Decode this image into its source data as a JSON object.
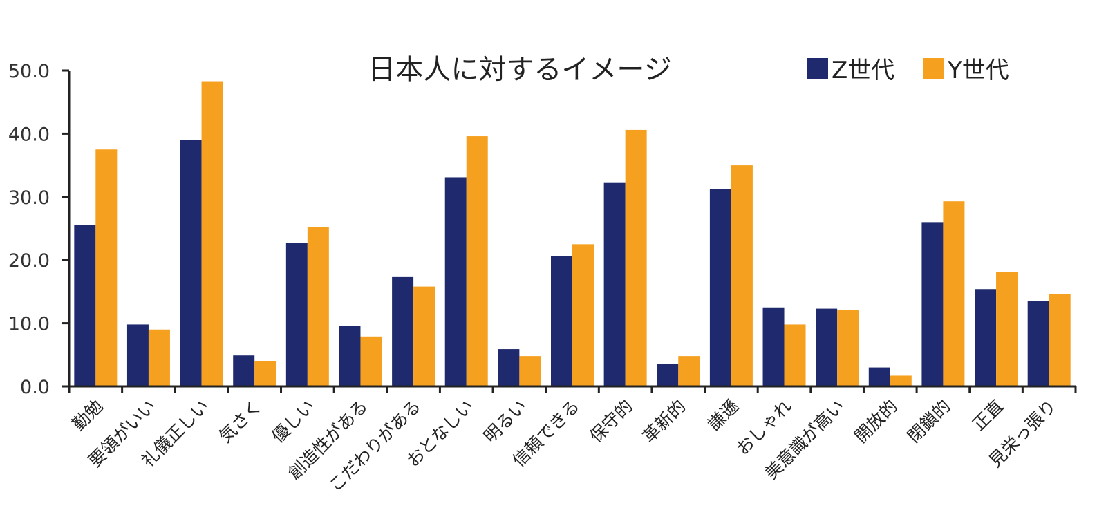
{
  "chart_data": {
    "type": "bar",
    "title": "日本人に対するイメージ",
    "xlabel": "",
    "ylabel": "",
    "ylim": [
      0,
      50
    ],
    "yticks": [
      "0.0",
      "10.0",
      "20.0",
      "30.0",
      "40.0",
      "50.0"
    ],
    "categories": [
      "勤勉",
      "要領がいい",
      "礼儀正しい",
      "気さく",
      "優しい",
      "創造性がある",
      "こだわりがある",
      "おとなしい",
      "明るい",
      "信頼できる",
      "保守的",
      "革新的",
      "謙遜",
      "おしゃれ",
      "美意識が高い",
      "開放的",
      "閉鎖的",
      "正直",
      "見栄っ張り"
    ],
    "series": [
      {
        "name": "Z世代",
        "color": "#1f2a6e",
        "values": [
          25.6,
          9.8,
          39.0,
          4.9,
          22.7,
          9.6,
          17.3,
          33.1,
          5.9,
          20.6,
          32.2,
          3.6,
          31.2,
          12.5,
          12.3,
          3.0,
          26.0,
          15.4,
          13.5
        ]
      },
      {
        "name": "Y世代",
        "color": "#f5a01f",
        "values": [
          37.5,
          9.0,
          48.3,
          4.0,
          25.2,
          7.9,
          15.8,
          39.6,
          4.8,
          22.5,
          40.6,
          4.8,
          35.0,
          9.8,
          12.1,
          1.7,
          29.3,
          18.1,
          14.6
        ]
      }
    ],
    "grid": false,
    "legend_position": "top-right"
  }
}
